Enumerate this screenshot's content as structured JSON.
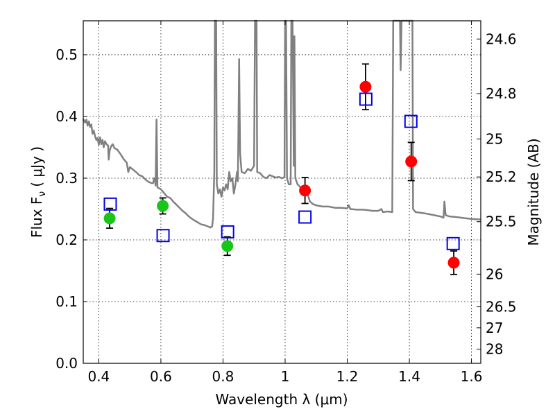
{
  "chart_data": {
    "type": "scatter",
    "xlabel": "Wavelength  λ (μm)",
    "ylabel": "Flux  F",
    "ylabel_sub": "ν",
    "ylabel_unit": "( μJy )",
    "y2label": "Magnitude (AB)",
    "xlim": [
      0.35,
      1.63
    ],
    "ylim": [
      0.0,
      0.555
    ],
    "x_ticks": [
      {
        "value": 0.4,
        "label": "0.4"
      },
      {
        "value": 0.6,
        "label": "0.6"
      },
      {
        "value": 0.8,
        "label": "0.8"
      },
      {
        "value": 1.0,
        "label": "1"
      },
      {
        "value": 1.2,
        "label": "1.2"
      },
      {
        "value": 1.4,
        "label": "1.4"
      },
      {
        "value": 1.6,
        "label": "1.6"
      }
    ],
    "y_ticks": [
      {
        "value": 0.0,
        "label": "0.0"
      },
      {
        "value": 0.1,
        "label": "0.1"
      },
      {
        "value": 0.2,
        "label": "0.2"
      },
      {
        "value": 0.3,
        "label": "0.3"
      },
      {
        "value": 0.4,
        "label": "0.4"
      },
      {
        "value": 0.5,
        "label": "0.5"
      }
    ],
    "y2_ticks": [
      {
        "flux": 0.5255,
        "label": "24.6"
      },
      {
        "flux": 0.437,
        "label": "24.8"
      },
      {
        "flux": 0.3635,
        "label": "25"
      },
      {
        "flux": 0.302,
        "label": "25.2"
      },
      {
        "flux": 0.2295,
        "label": "25.5"
      },
      {
        "flux": 0.1445,
        "label": "26"
      },
      {
        "flux": 0.0915,
        "label": "26.5"
      },
      {
        "flux": 0.0575,
        "label": "27"
      },
      {
        "flux": 0.023,
        "label": "28"
      }
    ],
    "grid": true,
    "series": [
      {
        "marker": "circle",
        "color": "#19c519",
        "points": [
          {
            "x": 0.435,
            "y": 0.235,
            "err": 0.016
          },
          {
            "x": 0.606,
            "y": 0.255,
            "err": 0.013
          },
          {
            "x": 0.814,
            "y": 0.19,
            "err": 0.015
          }
        ]
      },
      {
        "marker": "circle",
        "color": "#ff0000",
        "points": [
          {
            "x": 1.064,
            "y": 0.28,
            "err": 0.021
          },
          {
            "x": 1.259,
            "y": 0.448,
            "err": 0.037
          },
          {
            "x": 1.406,
            "y": 0.327,
            "err": 0.031
          },
          {
            "x": 1.543,
            "y": 0.163,
            "err": 0.019
          }
        ]
      },
      {
        "marker": "open-square",
        "color": "#0000ee",
        "points": [
          {
            "x": 0.437,
            "y": 0.258
          },
          {
            "x": 0.607,
            "y": 0.207
          },
          {
            "x": 0.815,
            "y": 0.213
          },
          {
            "x": 1.064,
            "y": 0.237
          },
          {
            "x": 1.26,
            "y": 0.428
          },
          {
            "x": 1.405,
            "y": 0.392
          },
          {
            "x": 1.541,
            "y": 0.194
          }
        ]
      },
      {
        "marker": "line",
        "color": "#808080",
        "points": [
          [
            0.35,
            0.396
          ],
          [
            0.356,
            0.39
          ],
          [
            0.36,
            0.395
          ],
          [
            0.364,
            0.385
          ],
          [
            0.368,
            0.392
          ],
          [
            0.372,
            0.383
          ],
          [
            0.376,
            0.387
          ],
          [
            0.38,
            0.372
          ],
          [
            0.384,
            0.377
          ],
          [
            0.388,
            0.368
          ],
          [
            0.392,
            0.362
          ],
          [
            0.396,
            0.365
          ],
          [
            0.4,
            0.354
          ],
          [
            0.404,
            0.366
          ],
          [
            0.408,
            0.355
          ],
          [
            0.412,
            0.362
          ],
          [
            0.416,
            0.35
          ],
          [
            0.42,
            0.36
          ],
          [
            0.425,
            0.355
          ],
          [
            0.43,
            0.353
          ],
          [
            0.432,
            0.33
          ],
          [
            0.435,
            0.345
          ],
          [
            0.44,
            0.352
          ],
          [
            0.445,
            0.355
          ],
          [
            0.45,
            0.349
          ],
          [
            0.46,
            0.346
          ],
          [
            0.47,
            0.339
          ],
          [
            0.48,
            0.331
          ],
          [
            0.49,
            0.325
          ],
          [
            0.495,
            0.31
          ],
          [
            0.5,
            0.318
          ],
          [
            0.51,
            0.314
          ],
          [
            0.52,
            0.31
          ],
          [
            0.53,
            0.305
          ],
          [
            0.54,
            0.303
          ],
          [
            0.55,
            0.298
          ],
          [
            0.56,
            0.294
          ],
          [
            0.57,
            0.292
          ],
          [
            0.575,
            0.292
          ],
          [
            0.578,
            0.3
          ],
          [
            0.58,
            0.3
          ],
          [
            0.583,
            0.288
          ],
          [
            0.586,
            0.395
          ],
          [
            0.589,
            0.285
          ],
          [
            0.6,
            0.282
          ],
          [
            0.61,
            0.276
          ],
          [
            0.62,
            0.27
          ],
          [
            0.63,
            0.268
          ],
          [
            0.64,
            0.262
          ],
          [
            0.65,
            0.257
          ],
          [
            0.66,
            0.252
          ],
          [
            0.67,
            0.247
          ],
          [
            0.68,
            0.243
          ],
          [
            0.69,
            0.238
          ],
          [
            0.7,
            0.234
          ],
          [
            0.71,
            0.231
          ],
          [
            0.72,
            0.228
          ],
          [
            0.73,
            0.225
          ],
          [
            0.74,
            0.224
          ],
          [
            0.75,
            0.222
          ],
          [
            0.76,
            0.22
          ],
          [
            0.765,
            0.222
          ],
          [
            0.768,
            0.235
          ],
          [
            0.772,
            0.31
          ],
          [
            0.774,
            0.555
          ],
          [
            0.778,
            0.555
          ],
          [
            0.78,
            0.29
          ],
          [
            0.785,
            0.275
          ],
          [
            0.79,
            0.282
          ],
          [
            0.795,
            0.27
          ],
          [
            0.8,
            0.285
          ],
          [
            0.805,
            0.28
          ],
          [
            0.81,
            0.29
          ],
          [
            0.815,
            0.282
          ],
          [
            0.82,
            0.31
          ],
          [
            0.825,
            0.295
          ],
          [
            0.83,
            0.3
          ],
          [
            0.835,
            0.275
          ],
          [
            0.84,
            0.29
          ],
          [
            0.845,
            0.31
          ],
          [
            0.848,
            0.295
          ],
          [
            0.852,
            0.493
          ],
          [
            0.855,
            0.34
          ],
          [
            0.86,
            0.31
          ],
          [
            0.87,
            0.308
          ],
          [
            0.88,
            0.315
          ],
          [
            0.89,
            0.312
          ],
          [
            0.9,
            0.32
          ],
          [
            0.903,
            0.555
          ],
          [
            0.908,
            0.555
          ],
          [
            0.91,
            0.31
          ],
          [
            0.92,
            0.308
          ],
          [
            0.93,
            0.302
          ],
          [
            0.94,
            0.3
          ],
          [
            0.95,
            0.305
          ],
          [
            0.96,
            0.303
          ],
          [
            0.97,
            0.301
          ],
          [
            0.98,
            0.302
          ],
          [
            0.99,
            0.3
          ],
          [
            0.998,
            0.302
          ],
          [
            1.0,
            0.555
          ],
          [
            1.003,
            0.555
          ],
          [
            1.006,
            0.3
          ],
          [
            1.012,
            0.29
          ],
          [
            1.018,
            0.29
          ],
          [
            1.02,
            0.555
          ],
          [
            1.024,
            0.555
          ],
          [
            1.028,
            0.32
          ],
          [
            1.03,
            0.53
          ],
          [
            1.033,
            0.3
          ],
          [
            1.04,
            0.29
          ],
          [
            1.05,
            0.285
          ],
          [
            1.06,
            0.283
          ],
          [
            1.07,
            0.278
          ],
          [
            1.08,
            0.262
          ],
          [
            1.09,
            0.258
          ],
          [
            1.1,
            0.256
          ],
          [
            1.12,
            0.254
          ],
          [
            1.14,
            0.254
          ],
          [
            1.16,
            0.252
          ],
          [
            1.18,
            0.252
          ],
          [
            1.2,
            0.251
          ],
          [
            1.205,
            0.256
          ],
          [
            1.21,
            0.25
          ],
          [
            1.23,
            0.249
          ],
          [
            1.25,
            0.249
          ],
          [
            1.27,
            0.248
          ],
          [
            1.28,
            0.247
          ],
          [
            1.3,
            0.247
          ],
          [
            1.31,
            0.25
          ],
          [
            1.315,
            0.245
          ],
          [
            1.33,
            0.246
          ],
          [
            1.345,
            0.245
          ],
          [
            1.348,
            0.555
          ],
          [
            1.36,
            0.555
          ],
          [
            1.37,
            0.555
          ],
          [
            1.372,
            0.475
          ],
          [
            1.375,
            0.555
          ],
          [
            1.39,
            0.555
          ],
          [
            1.4,
            0.555
          ],
          [
            1.405,
            0.555
          ],
          [
            1.41,
            0.555
          ],
          [
            1.412,
            0.25
          ],
          [
            1.42,
            0.245
          ],
          [
            1.45,
            0.243
          ],
          [
            1.48,
            0.24
          ],
          [
            1.5,
            0.238
          ],
          [
            1.51,
            0.236
          ],
          [
            1.513,
            0.262
          ],
          [
            1.517,
            0.24
          ],
          [
            1.53,
            0.238
          ],
          [
            1.55,
            0.237
          ],
          [
            1.58,
            0.235
          ],
          [
            1.6,
            0.234
          ],
          [
            1.63,
            0.233
          ]
        ]
      }
    ]
  }
}
